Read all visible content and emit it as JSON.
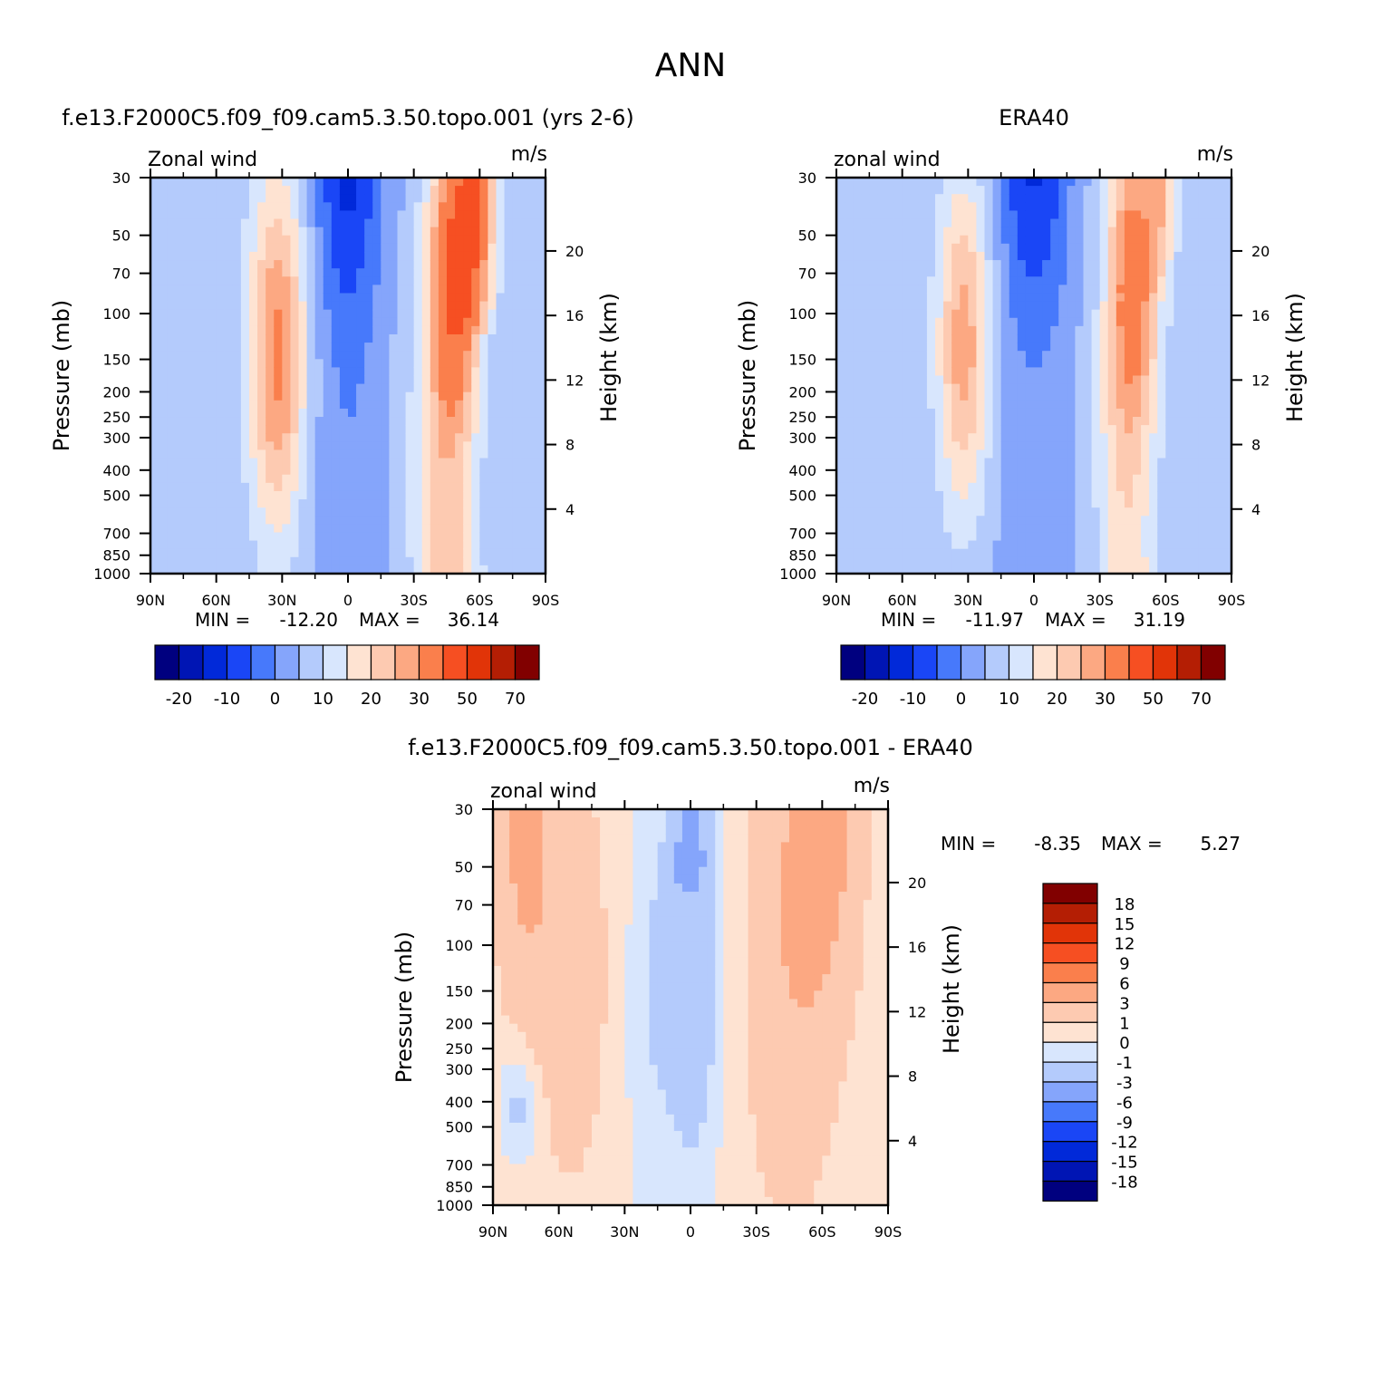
{
  "colors": {
    "colorbar": [
      "#00007F",
      "#0015B4",
      "#0129D9",
      "#1A46F6",
      "#4779FB",
      "#85A5FB",
      "#B4CBFC",
      "#D8E6FD",
      "#FEE3D2",
      "#FDCAB1",
      "#FCA882",
      "#FA7F4C",
      "#F64F22",
      "#E13408",
      "#B41E04",
      "#810000"
    ]
  },
  "chart_data": [
    {
      "name": "model-panel",
      "type": "heatmap",
      "subtype": "filled-contour",
      "main_title": "ANN",
      "title": "f.e13.F2000C5.f09_f09.cam5.3.50.topo.001 (yrs 2-6)",
      "left_label": "Zonal wind",
      "right_label": "m/s",
      "xlabel": "",
      "ylabel": "Pressure (mb)",
      "y2label": "Height (km)",
      "x_ticks": [
        "90N",
        "60N",
        "30N",
        "0",
        "30S",
        "60S",
        "90S"
      ],
      "xlim": [
        90,
        -90
      ],
      "y_ticks": [
        "30",
        "50",
        "70",
        "100",
        "150",
        "200",
        "250",
        "300",
        "400",
        "500",
        "700",
        "850",
        "1000"
      ],
      "ylim": [
        1000,
        30
      ],
      "y2_ticks": [
        "20",
        "16",
        "12",
        "8",
        "4"
      ],
      "min_label": "MIN =",
      "min_value": "-12.20",
      "max_label": "MAX =",
      "max_value": "36.14",
      "colorbar_labels": [
        "-20",
        "-10",
        "0",
        "10",
        "20",
        "30",
        "50",
        "70"
      ]
    },
    {
      "name": "obs-panel",
      "type": "heatmap",
      "subtype": "filled-contour",
      "title": "ERA40",
      "left_label": "zonal wind",
      "right_label": "m/s",
      "xlabel": "",
      "ylabel": "Pressure (mb)",
      "y2label": "Height (km)",
      "x_ticks": [
        "90N",
        "60N",
        "30N",
        "0",
        "30S",
        "60S",
        "90S"
      ],
      "xlim": [
        90,
        -90
      ],
      "y_ticks": [
        "30",
        "50",
        "70",
        "100",
        "150",
        "200",
        "250",
        "300",
        "400",
        "500",
        "700",
        "850",
        "1000"
      ],
      "ylim": [
        1000,
        30
      ],
      "y2_ticks": [
        "20",
        "16",
        "12",
        "8",
        "4"
      ],
      "min_label": "MIN =",
      "min_value": "-11.97",
      "max_label": "MAX =",
      "max_value": "31.19",
      "colorbar_labels": [
        "-20",
        "-10",
        "0",
        "10",
        "20",
        "30",
        "50",
        "70"
      ]
    },
    {
      "name": "diff-panel",
      "type": "heatmap",
      "subtype": "filled-contour",
      "title": "f.e13.F2000C5.f09_f09.cam5.3.50.topo.001 - ERA40",
      "left_label": "zonal wind",
      "right_label": "m/s",
      "xlabel": "",
      "ylabel": "Pressure (mb)",
      "y2label": "Height (km)",
      "x_ticks": [
        "90N",
        "60N",
        "30N",
        "0",
        "30S",
        "60S",
        "90S"
      ],
      "xlim": [
        90,
        -90
      ],
      "y_ticks": [
        "30",
        "50",
        "70",
        "100",
        "150",
        "200",
        "250",
        "300",
        "400",
        "500",
        "700",
        "850",
        "1000"
      ],
      "ylim": [
        1000,
        30
      ],
      "y2_ticks": [
        "20",
        "16",
        "12",
        "8",
        "4"
      ],
      "min_label": "MIN =",
      "min_value": "-8.35",
      "max_label": "MAX =",
      "max_value": "5.27",
      "colorbar_labels": [
        "18",
        "15",
        "12",
        "9",
        "6",
        "3",
        "1",
        "0",
        "-1",
        "-3",
        "-6",
        "-9",
        "-12",
        "-15",
        "-18"
      ]
    }
  ]
}
